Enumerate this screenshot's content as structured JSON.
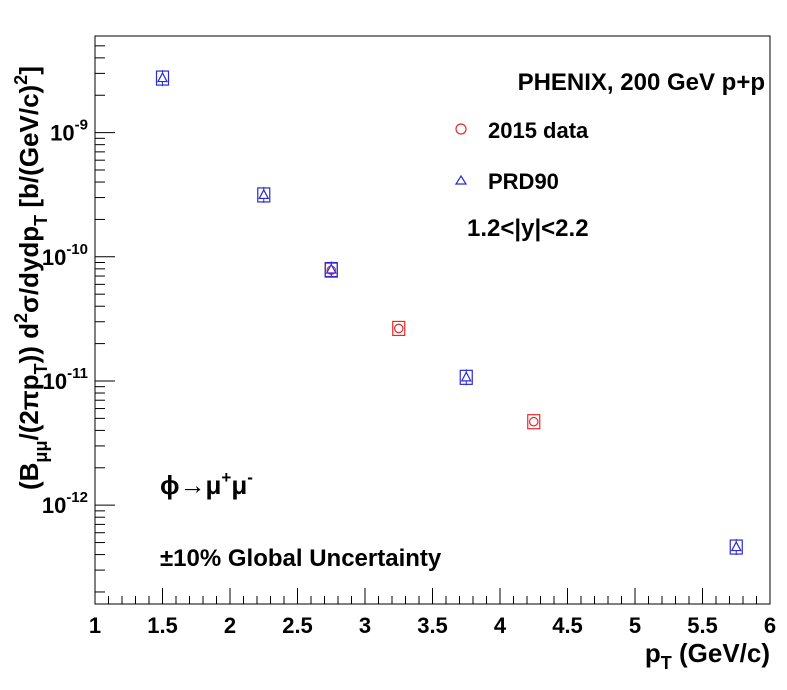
{
  "chart_data": {
    "type": "scatter",
    "xlabel_main": "p",
    "xlabel_sub": "T",
    "xlabel_rest": " (GeV/c)",
    "ylabel": {
      "p1": "(B",
      "s1": "μμ",
      "p2": "/(2πp",
      "s2": "T",
      "p3": ")) d",
      "sup2": "2",
      "p4": "σ/dydp",
      "s3": "T",
      "p5": " [b/(GeV/c)",
      "sup3": "2",
      "p6": "]"
    },
    "xlim": [
      1,
      6
    ],
    "ylim": [
      1.6e-13,
      6e-09
    ],
    "yscale": "log",
    "x_ticks": [
      {
        "value": 1,
        "label": "1"
      },
      {
        "value": 1.5,
        "label": "1.5"
      },
      {
        "value": 2,
        "label": "2"
      },
      {
        "value": 2.5,
        "label": "2.5"
      },
      {
        "value": 3,
        "label": "3"
      },
      {
        "value": 3.5,
        "label": "3.5"
      },
      {
        "value": 4,
        "label": "4"
      },
      {
        "value": 4.5,
        "label": "4.5"
      },
      {
        "value": 5,
        "label": "5"
      },
      {
        "value": 5.5,
        "label": "5.5"
      },
      {
        "value": 6,
        "label": "6"
      }
    ],
    "y_ticks": [
      {
        "value": 1e-12,
        "base": "10",
        "exp": "-12"
      },
      {
        "value": 1e-11,
        "base": "10",
        "exp": "-11"
      },
      {
        "value": 1e-10,
        "base": "10",
        "exp": "-10"
      },
      {
        "value": 1e-09,
        "base": "10",
        "exp": "-9"
      }
    ],
    "series": [
      {
        "name": "2015 data",
        "marker": "circle",
        "color": "#e8282d",
        "points": [
          {
            "x": 2.75,
            "y": 7.8e-11
          },
          {
            "x": 3.25,
            "y": 2.65e-11
          },
          {
            "x": 4.25,
            "y": 4.7e-12
          }
        ]
      },
      {
        "name": "PRD90",
        "marker": "triangle",
        "color": "#2b2bd6",
        "points": [
          {
            "x": 1.5,
            "y": 2.75e-09
          },
          {
            "x": 2.25,
            "y": 3.15e-10
          },
          {
            "x": 2.75,
            "y": 7.9e-11
          },
          {
            "x": 3.75,
            "y": 1.07e-11
          },
          {
            "x": 5.75,
            "y": 4.6e-13
          }
        ]
      }
    ],
    "legend_title": "PHENIX, 200 GeV p+p",
    "rapidity_label": "1.2<|y|<2.2",
    "decay_label": {
      "phi": "ϕ",
      "arrow": "→μ",
      "sup1": "+",
      "mu2": "μ",
      "sup2": "-"
    },
    "uncertainty_label": "±10% Global Uncertainty",
    "grid": false,
    "legend_position": "top-right"
  }
}
